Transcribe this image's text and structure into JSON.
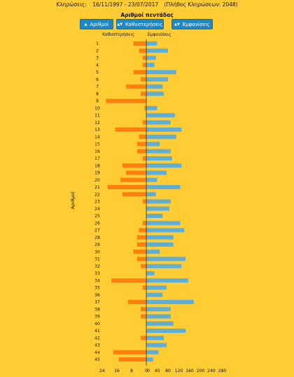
{
  "header": {
    "draws_label": "Κληρώσεις:",
    "date_range": "16/11/1997 - 23/07/2017",
    "draw_count": "(Πλήθος Κληρώσεων: 2048)"
  },
  "buttons": {
    "numbers": "Αριθμοί",
    "delays": "Καθυστερήσεις",
    "appearances": "Εμφανίσεις"
  },
  "colors": {
    "background": "#FFCC33",
    "delay_bar": "#FF7F0E",
    "appearance_bar": "#5EAED8",
    "button": "#1E88C7"
  },
  "chart_data": {
    "type": "bar",
    "orientation": "horizontal-diverging",
    "title": "Αριθμοί πεντάδας",
    "ylabel": "Αριθμοί",
    "left_header": "Καθυστερήσεις",
    "right_header": "Εμφανίσεις",
    "left_ticks": [
      "24",
      "16",
      "8",
      "0"
    ],
    "right_ticks": [
      "0",
      "40",
      "80",
      "120",
      "160",
      "200",
      "240",
      "280"
    ],
    "left_range": [
      0,
      24
    ],
    "right_range": [
      0,
      280
    ],
    "categories": [
      "1",
      "2",
      "3",
      "4",
      "5",
      "6",
      "7",
      "8",
      "9",
      "10",
      "11",
      "12",
      "13",
      "14",
      "15",
      "16",
      "17",
      "18",
      "19",
      "20",
      "21",
      "22",
      "23",
      "24",
      "25",
      "26",
      "27",
      "28",
      "29",
      "30",
      "31",
      "32",
      "33",
      "34",
      "35",
      "36",
      "37",
      "38",
      "39",
      "40",
      "41",
      "42",
      "43",
      "44",
      "45"
    ],
    "series": [
      {
        "name": "Καθυστερήσεις",
        "values": [
          7,
          4,
          2,
          2,
          7,
          3,
          11,
          3,
          22,
          1,
          0,
          2,
          17,
          4,
          5,
          5,
          2,
          13,
          11,
          14,
          21,
          13,
          2,
          0,
          0,
          2,
          4,
          5,
          5,
          7,
          5,
          3,
          0,
          19,
          2,
          0,
          10,
          3,
          3,
          0,
          0,
          3,
          0,
          18,
          15
        ]
      },
      {
        "name": "Εμφανίσεις",
        "values": [
          40,
          80,
          35,
          30,
          110,
          80,
          60,
          65,
          0,
          40,
          105,
          90,
          130,
          110,
          50,
          90,
          95,
          130,
          75,
          40,
          125,
          35,
          90,
          85,
          60,
          125,
          140,
          100,
          100,
          50,
          145,
          130,
          30,
          155,
          75,
          60,
          175,
          90,
          90,
          100,
          145,
          65,
          75,
          45,
          25
        ]
      }
    ]
  }
}
